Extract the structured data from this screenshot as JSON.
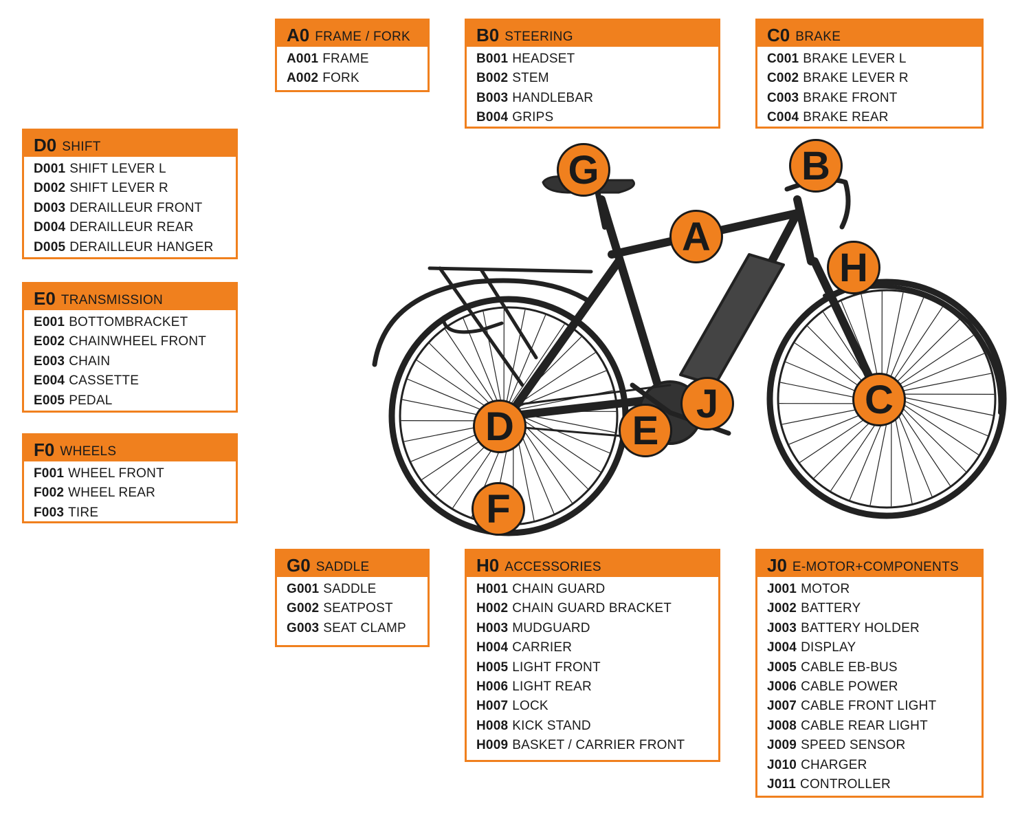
{
  "groups": {
    "A0": {
      "code": "A0",
      "name": "FRAME / FORK",
      "items": [
        {
          "code": "A001",
          "name": "FRAME"
        },
        {
          "code": "A002",
          "name": "FORK"
        }
      ]
    },
    "B0": {
      "code": "B0",
      "name": "STEERING",
      "items": [
        {
          "code": "B001",
          "name": "HEADSET"
        },
        {
          "code": "B002",
          "name": "STEM"
        },
        {
          "code": "B003",
          "name": "HANDLEBAR"
        },
        {
          "code": "B004",
          "name": "GRIPS"
        }
      ]
    },
    "C0": {
      "code": "C0",
      "name": "BRAKE",
      "items": [
        {
          "code": "C001",
          "name": "BRAKE LEVER L"
        },
        {
          "code": "C002",
          "name": "BRAKE LEVER R"
        },
        {
          "code": "C003",
          "name": "BRAKE FRONT"
        },
        {
          "code": "C004",
          "name": "BRAKE REAR"
        }
      ]
    },
    "D0": {
      "code": "D0",
      "name": "SHIFT",
      "items": [
        {
          "code": "D001",
          "name": "SHIFT LEVER L"
        },
        {
          "code": "D002",
          "name": "SHIFT LEVER R"
        },
        {
          "code": "D003",
          "name": "DERAILLEUR FRONT"
        },
        {
          "code": "D004",
          "name": "DERAILLEUR REAR"
        },
        {
          "code": "D005",
          "name": "DERAILLEUR HANGER"
        }
      ]
    },
    "E0": {
      "code": "E0",
      "name": "TRANSMISSION",
      "items": [
        {
          "code": "E001",
          "name": "BOTTOMBRACKET"
        },
        {
          "code": "E002",
          "name": "CHAINWHEEL FRONT"
        },
        {
          "code": "E003",
          "name": "CHAIN"
        },
        {
          "code": "E004",
          "name": "CASSETTE"
        },
        {
          "code": "E005",
          "name": "PEDAL"
        }
      ]
    },
    "F0": {
      "code": "F0",
      "name": "WHEELS",
      "items": [
        {
          "code": "F001",
          "name": "WHEEL FRONT"
        },
        {
          "code": "F002",
          "name": "WHEEL REAR"
        },
        {
          "code": "F003",
          "name": "TIRE"
        }
      ]
    },
    "G0": {
      "code": "G0",
      "name": "SADDLE",
      "items": [
        {
          "code": "G001",
          "name": "SADDLE"
        },
        {
          "code": "G002",
          "name": "SEATPOST"
        },
        {
          "code": "G003",
          "name": "SEAT CLAMP"
        }
      ]
    },
    "H0": {
      "code": "H0",
      "name": "ACCESSORIES",
      "items": [
        {
          "code": "H001",
          "name": "CHAIN GUARD"
        },
        {
          "code": "H002",
          "name": "CHAIN GUARD BRACKET"
        },
        {
          "code": "H003",
          "name": "MUDGUARD"
        },
        {
          "code": "H004",
          "name": "CARRIER"
        },
        {
          "code": "H005",
          "name": "LIGHT FRONT"
        },
        {
          "code": "H006",
          "name": "LIGHT REAR"
        },
        {
          "code": "H007",
          "name": "LOCK"
        },
        {
          "code": "H008",
          "name": "KICK STAND"
        },
        {
          "code": "H009",
          "name": "BASKET / CARRIER FRONT"
        }
      ]
    },
    "J0": {
      "code": "J0",
      "name": "E-MOTOR+COMPONENTS",
      "items": [
        {
          "code": "J001",
          "name": "MOTOR"
        },
        {
          "code": "J002",
          "name": "BATTERY"
        },
        {
          "code": "J003",
          "name": "BATTERY HOLDER"
        },
        {
          "code": "J004",
          "name": "DISPLAY"
        },
        {
          "code": "J005",
          "name": "CABLE EB-BUS"
        },
        {
          "code": "J006",
          "name": "CABLE POWER"
        },
        {
          "code": "J007",
          "name": "CABLE FRONT LIGHT"
        },
        {
          "code": "J008",
          "name": "CABLE REAR LIGHT"
        },
        {
          "code": "J009",
          "name": "SPEED SENSOR"
        },
        {
          "code": "J010",
          "name": "CHARGER"
        },
        {
          "code": "J011",
          "name": "CONTROLLER"
        }
      ]
    }
  },
  "markers": {
    "a": "A",
    "b": "B",
    "c": "C",
    "d": "D",
    "e": "E",
    "f": "F",
    "g": "G",
    "h": "H",
    "j": "J"
  },
  "colors": {
    "accent": "#f0801e",
    "ink": "#1a1a1a"
  }
}
